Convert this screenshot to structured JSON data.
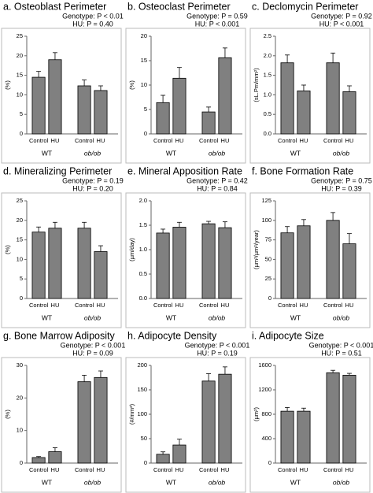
{
  "chart_data": [
    {
      "type": "bar",
      "title": "a. Osteoblast Perimeter",
      "subtitle": [
        "Genotype: P < 0.01",
        "HU: P = 0.40"
      ],
      "ylabel": "(%)",
      "categories": [
        "Control",
        "HU",
        "Control",
        "HU"
      ],
      "groups": [
        "WT",
        "ob/ob"
      ],
      "values": [
        14.5,
        19,
        12.3,
        11.1
      ],
      "errors": [
        1.5,
        1.8,
        1.5,
        1.2
      ],
      "ylim": [
        0,
        25
      ],
      "yticks": [
        0,
        5,
        10,
        15,
        20,
        25
      ],
      "color": "#808080"
    },
    {
      "type": "bar",
      "title": "b. Osteoclast Perimeter",
      "subtitle": [
        "Genotype: P = 0.59",
        "HU: P < 0.001"
      ],
      "ylabel": "(%)",
      "categories": [
        "Control",
        "HU",
        "Control",
        "HU"
      ],
      "groups": [
        "WT",
        "ob/ob"
      ],
      "values": [
        6.4,
        11.4,
        4.5,
        15.6
      ],
      "errors": [
        1.5,
        2.2,
        1,
        2
      ],
      "ylim": [
        0,
        20
      ],
      "yticks": [
        0,
        5,
        10,
        15,
        20
      ],
      "color": "#808080"
    },
    {
      "type": "bar",
      "title": "c. Declomycin Perimeter",
      "subtitle": [
        "Genotype: P = 0.92",
        "HU: P < 0.001"
      ],
      "ylabel": "(sL.Pm/mm²)",
      "categories": [
        "Control",
        "HU",
        "Control",
        "HU"
      ],
      "groups": [
        "WT",
        "ob/ob"
      ],
      "values": [
        1.82,
        1.1,
        1.82,
        1.08
      ],
      "errors": [
        0.2,
        0.15,
        0.25,
        0.15
      ],
      "ylim": [
        0,
        2.5
      ],
      "yticks": [
        {
          "value": 0,
          "label": "0.0"
        },
        0.5,
        {
          "value": 1,
          "label": "1.0"
        },
        1.5,
        {
          "value": 2,
          "label": "2.0"
        },
        2.5
      ],
      "color": "#808080"
    },
    {
      "type": "bar",
      "title": "d. Mineralizing Perimeter",
      "subtitle": [
        "Genotype: P = 0.19",
        "HU: P = 0.20"
      ],
      "ylabel": "(%)",
      "categories": [
        "Control",
        "HU",
        "Control",
        "HU"
      ],
      "groups": [
        "WT",
        "ob/ob"
      ],
      "values": [
        17,
        18,
        18,
        12
      ],
      "errors": [
        1.3,
        1.5,
        1.5,
        1.5
      ],
      "ylim": [
        0,
        25
      ],
      "yticks": [
        0,
        5,
        10,
        15,
        20,
        25
      ],
      "color": "#808080"
    },
    {
      "type": "bar",
      "title": "e. Mineral Apposition Rate",
      "subtitle": [
        "Genotype: P = 0.42",
        "HU: P = 0.84"
      ],
      "ylabel": "(µm/day)",
      "categories": [
        "Control",
        "HU",
        "Control",
        "HU"
      ],
      "groups": [
        "WT",
        "ob/ob"
      ],
      "values": [
        1.34,
        1.46,
        1.53,
        1.45
      ],
      "errors": [
        0.08,
        0.1,
        0.05,
        0.12
      ],
      "ylim": [
        0,
        2
      ],
      "yticks": [
        {
          "value": 0,
          "label": "0.0"
        },
        0.5,
        {
          "value": 1,
          "label": "1.0"
        },
        1.5,
        {
          "value": 2,
          "label": "2.0"
        }
      ],
      "color": "#808080"
    },
    {
      "type": "bar",
      "title": "f. Bone Formation Rate",
      "subtitle": [
        "Genotype: P = 0.75",
        "HU: P = 0.39"
      ],
      "ylabel": "(µm³/µm²/year)",
      "categories": [
        "Control",
        "HU",
        "Control",
        "HU"
      ],
      "groups": [
        "WT",
        "ob/ob"
      ],
      "values": [
        84,
        93,
        100,
        70
      ],
      "errors": [
        8,
        8,
        10,
        13
      ],
      "ylim": [
        0,
        125
      ],
      "yticks": [
        0,
        25,
        50,
        75,
        100,
        125
      ],
      "color": "#808080"
    },
    {
      "type": "bar",
      "title": "g. Bone Marrow Adiposity",
      "subtitle": [
        "Genotype: P < 0.001",
        "HU: P = 0.09"
      ],
      "ylabel": "(%)",
      "categories": [
        "Control",
        "HU",
        "Control",
        "HU"
      ],
      "groups": [
        "WT",
        "ob/ob"
      ],
      "values": [
        1.7,
        3.5,
        25,
        26.3
      ],
      "errors": [
        0.3,
        1.2,
        2,
        2
      ],
      "ylim": [
        0,
        30
      ],
      "yticks": [
        0,
        10,
        20,
        30
      ],
      "color": "#808080"
    },
    {
      "type": "bar",
      "title": "h. Adipocyte Density",
      "subtitle": [
        "Genotype: P < 0.001",
        "HU: P = 0.19"
      ],
      "ylabel": "(#/mm²)",
      "categories": [
        "Control",
        "HU",
        "Control",
        "HU"
      ],
      "groups": [
        "WT",
        "ob/ob"
      ],
      "values": [
        18,
        37,
        168,
        182
      ],
      "errors": [
        5,
        12,
        15,
        15
      ],
      "ylim": [
        0,
        200
      ],
      "yticks": [
        0,
        50,
        100,
        150,
        200
      ],
      "color": "#808080"
    },
    {
      "type": "bar",
      "title": "i. Adipocyte Size",
      "subtitle": [
        "Genotype: P < 0.001",
        "HU: P = 0.51"
      ],
      "ylabel": "(µm²)",
      "categories": [
        "Control",
        "HU",
        "Control",
        "HU"
      ],
      "groups": [
        "WT",
        "ob/ob"
      ],
      "values": [
        850,
        850,
        1480,
        1440
      ],
      "errors": [
        60,
        50,
        40,
        30
      ],
      "ylim": [
        0,
        1600
      ],
      "yticks": [
        0,
        400,
        800,
        1200,
        1600
      ],
      "color": "#808080"
    }
  ]
}
